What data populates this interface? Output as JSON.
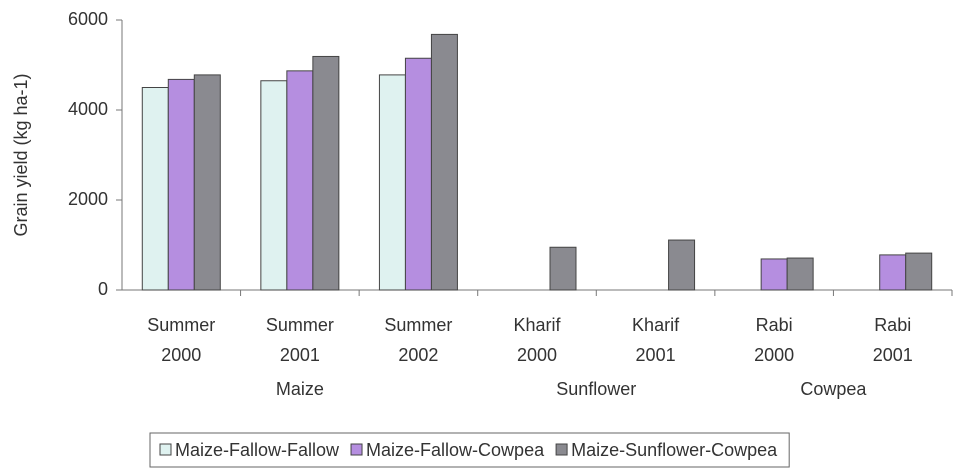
{
  "chart_data": {
    "type": "bar",
    "y_label": "Grain yield  (kg ha-1)",
    "groups": [
      {
        "name": "Maize",
        "categories": [
          [
            "Summer",
            "2000"
          ],
          [
            "Summer",
            "2001"
          ],
          [
            "Summer",
            "2002"
          ]
        ]
      },
      {
        "name": "Sunflower",
        "categories": [
          [
            "Kharif",
            "2000"
          ],
          [
            "Kharif",
            "2001"
          ]
        ]
      },
      {
        "name": "Cowpea",
        "categories": [
          [
            "Rabi",
            "2000"
          ],
          [
            "Rabi",
            "2001"
          ]
        ]
      }
    ],
    "series": [
      {
        "name": "Maize-Fallow-Fallow",
        "color": "#dff2f0",
        "values": [
          4500,
          4650,
          4780,
          null,
          null,
          null,
          null
        ]
      },
      {
        "name": "Maize-Fallow-Cowpea",
        "color": "#b58ee0",
        "values": [
          4680,
          4870,
          5150,
          null,
          null,
          690,
          780
        ]
      },
      {
        "name": "Maize-Sunflower-Cowpea",
        "color": "#8a8a90",
        "values": [
          4780,
          5190,
          5680,
          950,
          1110,
          710,
          820
        ]
      }
    ],
    "ylim": [
      0,
      6000
    ],
    "yticks": [
      0,
      2000,
      4000,
      6000
    ],
    "grid": false
  }
}
